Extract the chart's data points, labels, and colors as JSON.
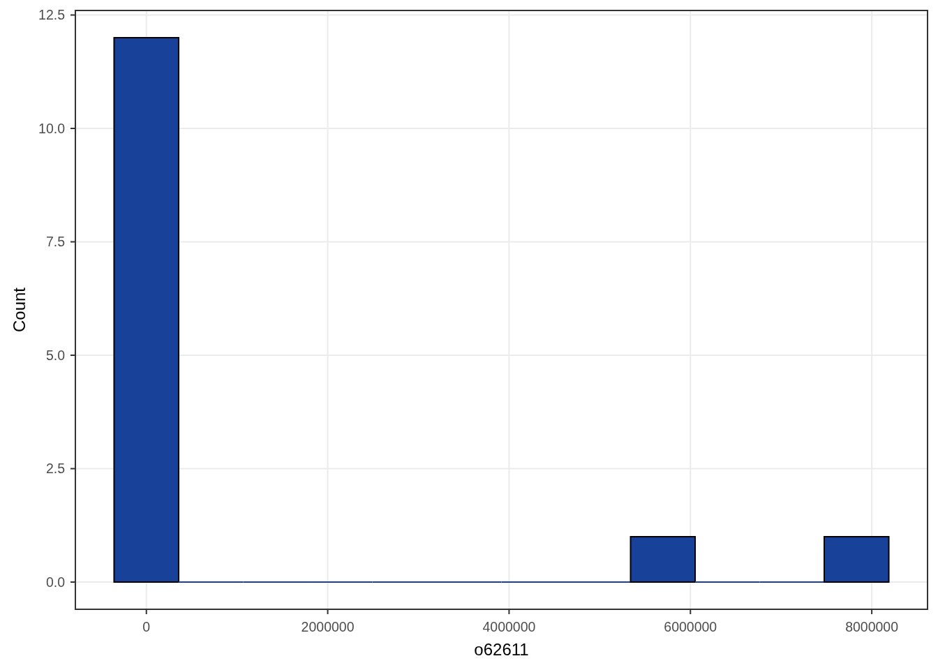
{
  "chart_data": {
    "type": "histogram",
    "xlabel": "o62611",
    "ylabel": "Count",
    "bins": [
      -356000,
      356000,
      1068000,
      1780000,
      2492000,
      3204000,
      3916000,
      4628000,
      5340000,
      6052000,
      6764000,
      7476000,
      8188000
    ],
    "values": [
      12,
      0,
      0,
      0,
      0,
      0,
      0,
      0,
      1,
      0,
      0,
      1
    ],
    "color": "#18429a",
    "xlim": [
      -783000,
      8615000
    ],
    "xticks": [
      0,
      2000000,
      4000000,
      6000000,
      8000000
    ],
    "ylim": [
      -0.6,
      12.6
    ],
    "yticks": [
      {
        "value": 0,
        "label": "0.0"
      },
      2.5,
      {
        "value": 5,
        "label": "5.0"
      },
      7.5,
      {
        "value": 10,
        "label": "10.0"
      },
      12.5
    ],
    "grid": true
  }
}
